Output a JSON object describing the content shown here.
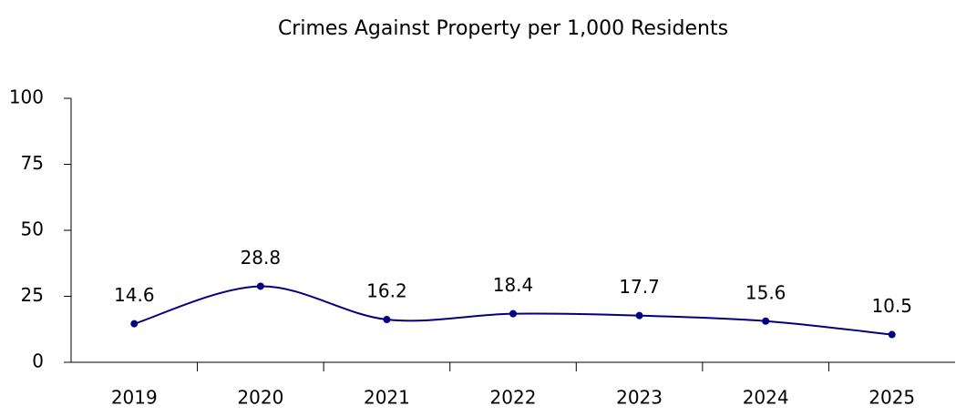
{
  "chart_data": {
    "type": "line",
    "title": "Crimes Against Property per 1,000 Residents",
    "categories": [
      "2019",
      "2020",
      "2021",
      "2022",
      "2023",
      "2024",
      "2025"
    ],
    "values": [
      14.6,
      28.8,
      16.2,
      18.4,
      17.7,
      15.6,
      10.5
    ],
    "color": "#000080",
    "ylim": [
      0,
      100
    ],
    "yticks": [
      0,
      25,
      50,
      75,
      100
    ],
    "grid": false,
    "smooth": true
  }
}
